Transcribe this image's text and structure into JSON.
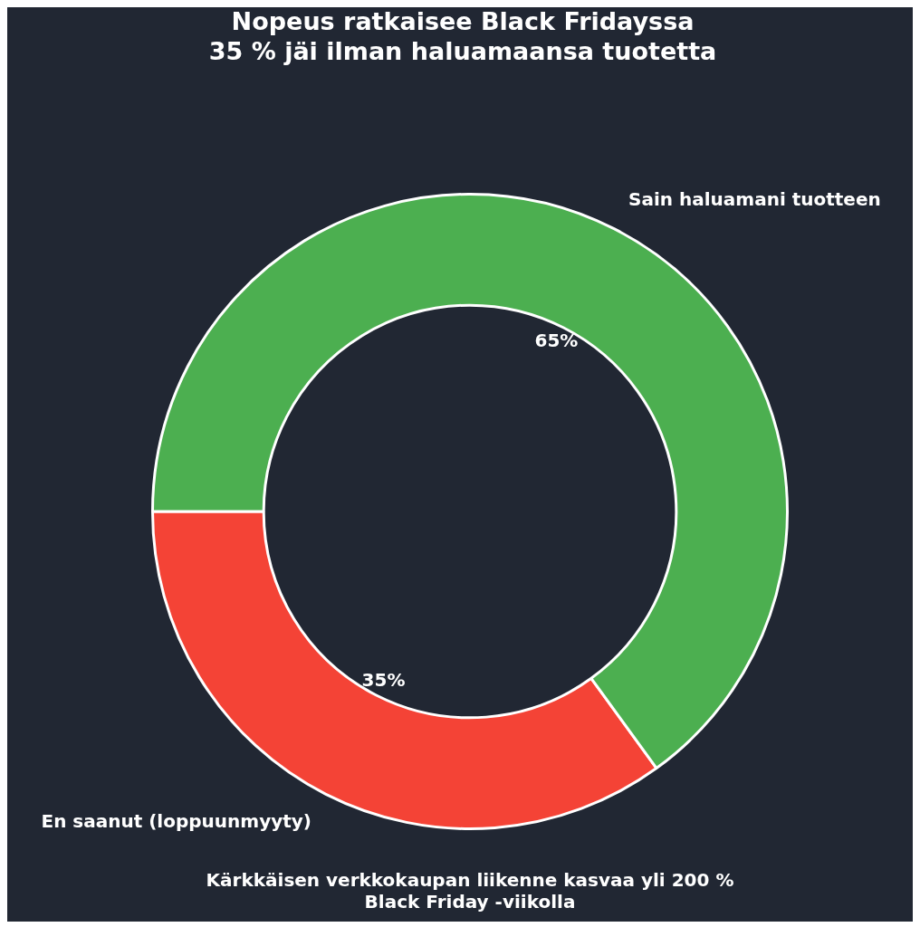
{
  "chart_data": {
    "type": "donut",
    "title": "Nopeus ratkaisee Black Fridayssa\n35 % jäi ilman haluamaansa tuotetta",
    "categories": [
      "En saanut (loppuunmyyty)",
      "Sain haluamani tuotteen"
    ],
    "values": [
      35,
      65
    ],
    "colors": [
      "#f44336",
      "#4caf50"
    ],
    "value_labels": [
      "35%",
      "65%"
    ],
    "legend": false,
    "annotations": [
      "Kärkkäisen verkkokaupan liikenne kasvaa yli 200 %\nBlack Friday -viikolla"
    ]
  }
}
